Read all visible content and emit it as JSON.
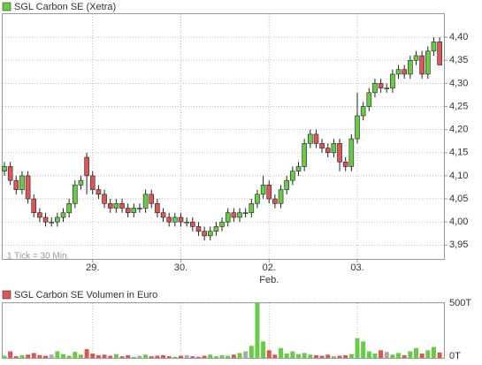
{
  "chart_data": [
    {
      "type": "candlestick",
      "title": "SGL Carbon SE (Xetra)",
      "annotation": "1 Tick = 30 Min.",
      "x_sublabel": "Feb.",
      "categories": [
        null,
        null,
        null,
        null,
        null,
        null,
        null,
        null,
        null,
        null,
        null,
        null,
        null,
        null,
        null,
        "29.",
        null,
        null,
        null,
        null,
        null,
        null,
        null,
        null,
        null,
        null,
        null,
        null,
        null,
        null,
        "30.",
        null,
        null,
        null,
        null,
        null,
        null,
        null,
        null,
        null,
        null,
        null,
        null,
        null,
        null,
        "02.",
        null,
        null,
        null,
        null,
        null,
        null,
        null,
        null,
        null,
        null,
        null,
        null,
        null,
        null,
        "03.",
        null,
        null,
        null,
        null,
        null,
        null,
        null,
        null,
        null,
        null,
        null,
        null,
        null,
        null
      ],
      "open": [
        4.11,
        4.12,
        4.09,
        4.07,
        4.1,
        4.05,
        4.02,
        4.01,
        4.0,
        4.0,
        4.01,
        4.02,
        4.04,
        4.08,
        4.14,
        4.1,
        4.07,
        4.06,
        4.04,
        4.03,
        4.04,
        4.03,
        4.02,
        4.03,
        4.03,
        4.06,
        4.04,
        4.02,
        4.01,
        4.0,
        4.01,
        4.0,
        4.0,
        3.99,
        3.98,
        3.97,
        3.98,
        3.99,
        4.0,
        4.02,
        4.01,
        4.02,
        4.02,
        4.04,
        4.06,
        4.08,
        4.05,
        4.04,
        4.07,
        4.09,
        4.11,
        4.12,
        4.17,
        4.19,
        4.17,
        4.16,
        4.15,
        4.17,
        4.13,
        4.12,
        4.18,
        4.23,
        4.25,
        4.28,
        4.3,
        4.29,
        4.29,
        4.32,
        4.33,
        4.32,
        4.35,
        4.36,
        4.32,
        4.37,
        4.39
      ],
      "high": [
        4.13,
        4.13,
        4.1,
        4.11,
        4.11,
        4.06,
        4.03,
        4.02,
        4.01,
        4.02,
        4.03,
        4.05,
        4.09,
        4.1,
        4.15,
        4.11,
        4.08,
        4.07,
        4.05,
        4.05,
        4.05,
        4.04,
        4.04,
        4.04,
        4.07,
        4.07,
        4.05,
        4.03,
        4.02,
        4.02,
        4.02,
        4.01,
        4.01,
        4.0,
        3.99,
        3.99,
        4.0,
        4.01,
        4.03,
        4.03,
        4.03,
        4.03,
        4.05,
        4.07,
        4.1,
        4.09,
        4.06,
        4.08,
        4.1,
        4.12,
        4.13,
        4.18,
        4.2,
        4.2,
        4.18,
        4.17,
        4.18,
        4.18,
        4.14,
        4.19,
        4.28,
        4.26,
        4.29,
        4.31,
        4.31,
        4.3,
        4.33,
        4.34,
        4.34,
        4.36,
        4.37,
        4.37,
        4.38,
        4.4,
        4.4
      ],
      "low": [
        4.1,
        4.08,
        4.06,
        4.06,
        4.04,
        4.01,
        4.0,
        3.99,
        3.99,
        3.99,
        4.0,
        4.01,
        4.03,
        4.07,
        4.06,
        4.06,
        4.05,
        4.03,
        4.02,
        4.02,
        4.02,
        4.01,
        4.01,
        4.02,
        4.02,
        4.03,
        4.01,
        4.0,
        3.99,
        3.99,
        3.99,
        3.99,
        3.98,
        3.97,
        3.96,
        3.96,
        3.97,
        3.98,
        3.99,
        4.0,
        4.0,
        4.01,
        4.01,
        4.03,
        4.05,
        4.04,
        4.03,
        4.03,
        4.06,
        4.08,
        4.1,
        4.11,
        4.16,
        4.16,
        4.15,
        4.14,
        4.14,
        4.11,
        4.11,
        4.11,
        4.17,
        4.22,
        4.24,
        4.27,
        4.28,
        4.28,
        4.28,
        4.31,
        4.31,
        4.31,
        4.34,
        4.31,
        4.31,
        4.36,
        4.34
      ],
      "close": [
        4.12,
        4.09,
        4.07,
        4.1,
        4.05,
        4.02,
        4.01,
        4.0,
        4.0,
        4.01,
        4.02,
        4.04,
        4.08,
        4.09,
        4.1,
        4.07,
        4.06,
        4.04,
        4.03,
        4.04,
        4.03,
        4.02,
        4.03,
        4.03,
        4.06,
        4.04,
        4.02,
        4.01,
        4.0,
        4.01,
        4.0,
        4.0,
        3.99,
        3.98,
        3.97,
        3.98,
        3.99,
        4.0,
        4.02,
        4.01,
        4.02,
        4.02,
        4.04,
        4.06,
        4.08,
        4.05,
        4.04,
        4.07,
        4.09,
        4.11,
        4.12,
        4.17,
        4.19,
        4.17,
        4.16,
        4.15,
        4.17,
        4.13,
        4.12,
        4.18,
        4.23,
        4.25,
        4.28,
        4.3,
        4.29,
        4.29,
        4.32,
        4.33,
        4.32,
        4.35,
        4.36,
        4.32,
        4.37,
        4.39,
        4.34
      ],
      "up_color": "#66cc44",
      "down_color": "#dd5555",
      "ylim": [
        3.92,
        4.45
      ],
      "yticks": [
        {
          "value": 3.95,
          "label": "3,95"
        },
        {
          "value": 4.0,
          "label": "4,00"
        },
        {
          "value": 4.05,
          "label": "4,05"
        },
        {
          "value": 4.1,
          "label": "4,10"
        },
        {
          "value": 4.15,
          "label": "4,15"
        },
        {
          "value": 4.2,
          "label": "4,20"
        },
        {
          "value": 4.25,
          "label": "4,25"
        },
        {
          "value": 4.3,
          "label": "4,30"
        },
        {
          "value": 4.35,
          "label": "4,35"
        },
        {
          "value": 4.4,
          "label": "4,40"
        }
      ],
      "grid": true
    },
    {
      "type": "bar",
      "title": "SGL Carbon SE Volumen in Euro",
      "values": [
        20000,
        60000,
        15000,
        25000,
        30000,
        45000,
        25000,
        20000,
        30000,
        60000,
        35000,
        20000,
        55000,
        30000,
        80000,
        40000,
        25000,
        30000,
        20000,
        35000,
        15000,
        25000,
        10000,
        20000,
        30000,
        15000,
        20000,
        25000,
        15000,
        10000,
        20000,
        25000,
        15000,
        10000,
        20000,
        30000,
        15000,
        25000,
        20000,
        30000,
        45000,
        60000,
        110000,
        500000,
        150000,
        70000,
        30000,
        90000,
        40000,
        60000,
        35000,
        45000,
        30000,
        25000,
        20000,
        30000,
        15000,
        20000,
        25000,
        35000,
        180000,
        150000,
        60000,
        40000,
        70000,
        55000,
        30000,
        45000,
        25000,
        60000,
        90000,
        40000,
        70000,
        100000,
        50000
      ],
      "flat_color": "#aaaaaa",
      "ylim": [
        0,
        500000
      ],
      "yticks": [
        {
          "value": 0,
          "label": "0T"
        },
        {
          "value": 500000,
          "label": "500T"
        }
      ],
      "grid": true
    }
  ]
}
